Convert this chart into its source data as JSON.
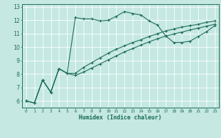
{
  "xlabel": "Humidex (Indice chaleur)",
  "bg_color": "#c5e8e2",
  "grid_color": "#ffffff",
  "line_color": "#1a6b5a",
  "xlim": [
    -0.5,
    23.5
  ],
  "ylim": [
    5.5,
    13.2
  ],
  "yticks": [
    6,
    7,
    8,
    9,
    10,
    11,
    12,
    13
  ],
  "xticks": [
    0,
    1,
    2,
    3,
    4,
    5,
    6,
    7,
    8,
    9,
    10,
    11,
    12,
    13,
    14,
    15,
    16,
    17,
    18,
    19,
    20,
    21,
    22,
    23
  ],
  "line1_x": [
    0,
    1,
    2,
    3,
    4,
    5,
    6,
    7,
    8,
    9,
    10,
    11,
    12,
    13,
    14,
    15,
    16,
    17,
    18,
    19,
    20,
    21,
    22,
    23
  ],
  "line1_y": [
    6.0,
    5.85,
    7.55,
    6.65,
    8.4,
    8.05,
    12.2,
    12.1,
    12.1,
    11.95,
    12.0,
    12.3,
    12.65,
    12.5,
    12.4,
    11.95,
    11.65,
    10.85,
    10.35,
    10.35,
    10.45,
    10.8,
    11.15,
    11.6
  ],
  "line2_x": [
    0,
    1,
    2,
    3,
    4,
    5,
    6,
    7,
    8,
    9,
    10,
    11,
    12,
    13,
    14,
    15,
    16,
    17,
    18,
    19,
    20,
    21,
    22,
    23
  ],
  "line2_y": [
    6.0,
    5.85,
    7.55,
    6.65,
    8.4,
    8.05,
    8.05,
    8.5,
    8.85,
    9.2,
    9.55,
    9.85,
    10.1,
    10.35,
    10.55,
    10.8,
    11.0,
    11.2,
    11.35,
    11.5,
    11.6,
    11.7,
    11.85,
    11.95
  ],
  "line3_x": [
    0,
    1,
    2,
    3,
    4,
    5,
    6,
    7,
    8,
    9,
    10,
    11,
    12,
    13,
    14,
    15,
    16,
    17,
    18,
    19,
    20,
    21,
    22,
    23
  ],
  "line3_y": [
    6.0,
    5.85,
    7.55,
    6.65,
    8.4,
    8.05,
    7.9,
    8.15,
    8.45,
    8.75,
    9.05,
    9.35,
    9.65,
    9.9,
    10.15,
    10.4,
    10.62,
    10.82,
    10.98,
    11.12,
    11.28,
    11.42,
    11.56,
    11.7
  ]
}
